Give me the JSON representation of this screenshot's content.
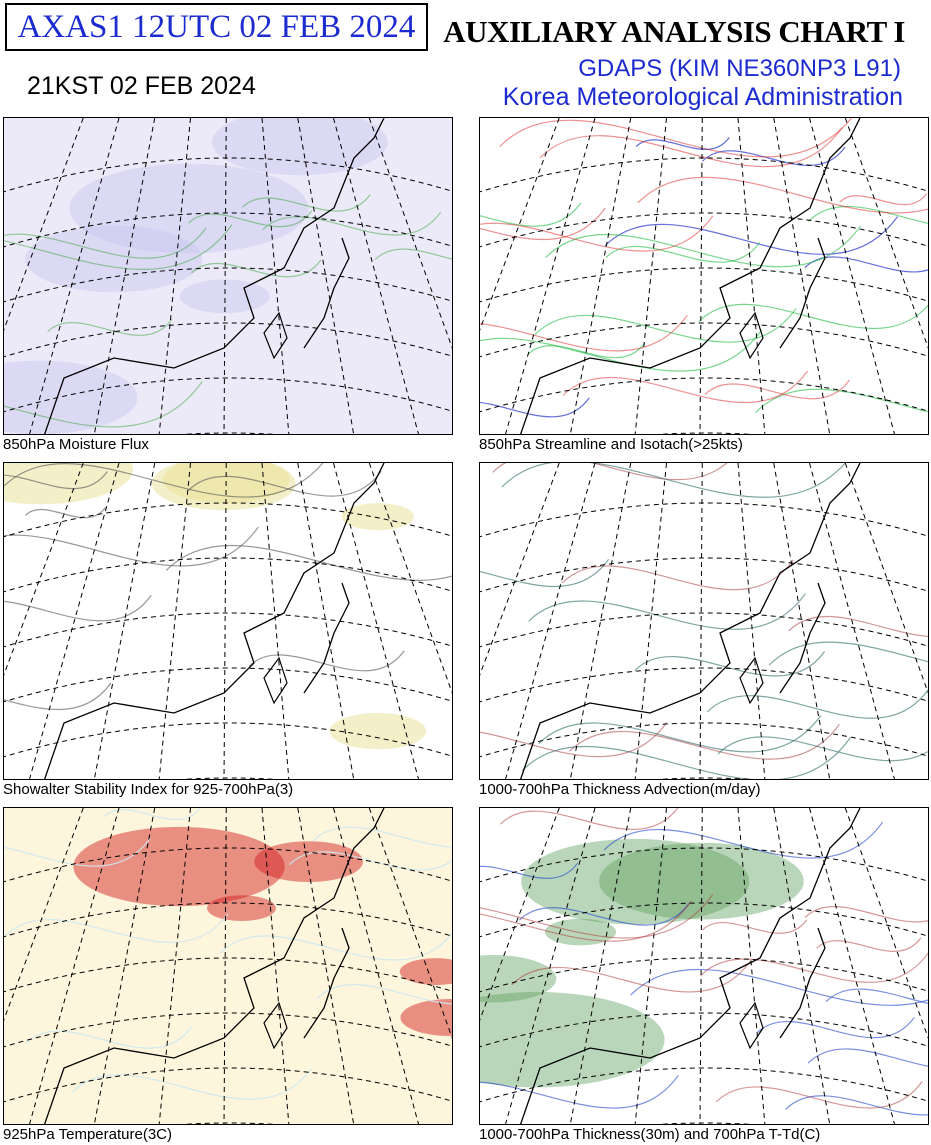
{
  "header": {
    "code": "AXAS1  12UTC 02 FEB 2024",
    "local_time": "21KST 02 FEB 2024",
    "title": "AUXILIARY ANALYSIS CHART  I",
    "model": "GDAPS (KIM NE360NP3 L91)",
    "agency": "Korea Meteorological Administration"
  },
  "panels": [
    {
      "caption": "850hPa Moisture Flux"
    },
    {
      "caption": "850hPa Streamline and Isotach(>25kts)"
    },
    {
      "caption": "Showalter Stability Index for 925-700hPa(3)"
    },
    {
      "caption": "1000-700hPa Thickness Advection(m/day)"
    },
    {
      "caption": "925hPa Temperature(3C)"
    },
    {
      "caption": "1000-700hPa Thickness(30m) and 700hPa T-Td(C)"
    }
  ]
}
